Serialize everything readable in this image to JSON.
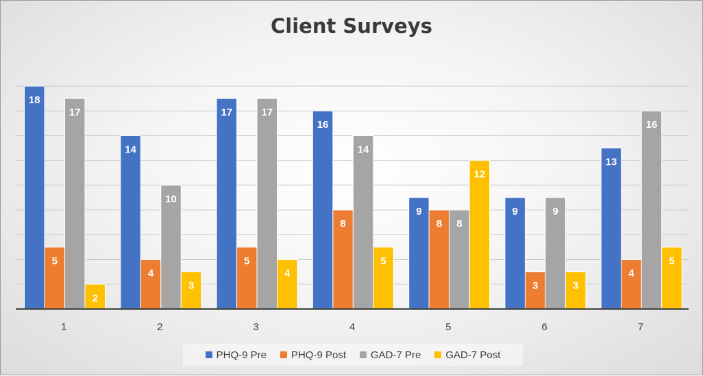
{
  "chart_data": {
    "type": "bar",
    "title": "Client Surveys",
    "categories": [
      "1",
      "2",
      "3",
      "4",
      "5",
      "6",
      "7"
    ],
    "series": [
      {
        "name": "PHQ-9 Pre",
        "color": "#4472C4",
        "values": [
          18,
          14,
          17,
          16,
          9,
          9,
          13
        ]
      },
      {
        "name": "PHQ-9 Post",
        "color": "#ED7D31",
        "values": [
          5,
          4,
          5,
          8,
          8,
          3,
          4
        ]
      },
      {
        "name": "GAD-7 Pre",
        "color": "#A5A5A5",
        "values": [
          17,
          10,
          17,
          14,
          8,
          9,
          16
        ]
      },
      {
        "name": "GAD-7 Post",
        "color": "#FFC000",
        "values": [
          2,
          3,
          4,
          5,
          12,
          3,
          5
        ]
      }
    ],
    "ylim": [
      0,
      18
    ],
    "grid": true,
    "legend_position": "bottom"
  }
}
